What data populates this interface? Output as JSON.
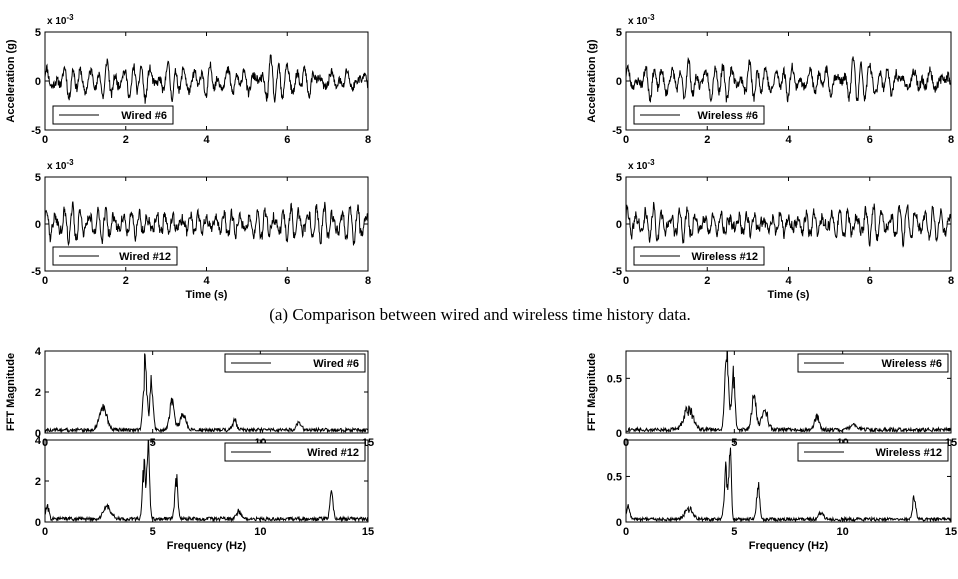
{
  "caption": "(a) Comparison between wired and wireless time history data.",
  "colors": {
    "line": "#000000",
    "axis": "#000000",
    "background": "#ffffff"
  },
  "chart_data": [
    {
      "id": "p1",
      "type": "line",
      "ylabel": "Acceleration (g)",
      "xlabel": "",
      "exponent": "x 10",
      "exponent_power": "-3",
      "xlim": [
        0,
        8
      ],
      "ylim": [
        -5,
        5
      ],
      "xticks": [
        0,
        2,
        4,
        6,
        8
      ],
      "yticks": [
        -5,
        0,
        5
      ],
      "legend": "top-left-lower",
      "series": [
        {
          "name": "Wired #6",
          "kind": "time",
          "seed": 11,
          "amp": 1.0
        }
      ]
    },
    {
      "id": "p2",
      "type": "line",
      "ylabel": "Acceleration (g)",
      "xlabel": "",
      "exponent": "x 10",
      "exponent_power": "-3",
      "xlim": [
        0,
        8
      ],
      "ylim": [
        -5,
        5
      ],
      "xticks": [
        0,
        2,
        4,
        6,
        8
      ],
      "yticks": [
        -5,
        0,
        5
      ],
      "legend": "bottom-left",
      "series": [
        {
          "name": "Wireless #6",
          "kind": "time",
          "seed": 23,
          "amp": 1.0
        }
      ]
    },
    {
      "id": "p3",
      "type": "line",
      "ylabel": "",
      "xlabel": "Time (s)",
      "exponent": "x 10",
      "exponent_power": "-3",
      "xlim": [
        0,
        8
      ],
      "ylim": [
        -5,
        5
      ],
      "xticks": [
        0,
        2,
        4,
        6,
        8
      ],
      "yticks": [
        -5,
        0,
        5
      ],
      "legend": "bottom-left",
      "series": [
        {
          "name": "Wired #12",
          "kind": "time2",
          "seed": 37,
          "amp": 1.0
        }
      ]
    },
    {
      "id": "p4",
      "type": "line",
      "ylabel": "",
      "xlabel": "Time (s)",
      "exponent": "x 10",
      "exponent_power": "-3",
      "xlim": [
        0,
        8
      ],
      "ylim": [
        -5,
        5
      ],
      "xticks": [
        0,
        2,
        4,
        6,
        8
      ],
      "yticks": [
        -5,
        0,
        5
      ],
      "legend": "bottom-left",
      "series": [
        {
          "name": "Wireless #12",
          "kind": "time2",
          "seed": 41,
          "amp": 1.0
        }
      ]
    },
    {
      "id": "p5",
      "type": "line",
      "ylabel": "FFT Magnitude",
      "xlabel": "",
      "exponent": "",
      "exponent_power": "",
      "xlim": [
        0,
        15
      ],
      "ylim": [
        0,
        4
      ],
      "xticks": [
        0,
        5,
        10,
        15
      ],
      "yticks": [
        0,
        2,
        4
      ],
      "legend": "top-right",
      "series": [
        {
          "name": "Wired #6",
          "kind": "fft",
          "peaks": [
            [
              2.7,
              1.1,
              0.25
            ],
            [
              4.65,
              3.2,
              0.12
            ],
            [
              4.95,
              2.6,
              0.1
            ],
            [
              5.9,
              1.4,
              0.15
            ],
            [
              6.4,
              0.8,
              0.2
            ],
            [
              8.8,
              0.5,
              0.15
            ],
            [
              11.8,
              0.4,
              0.15
            ]
          ],
          "floor": 0.15,
          "seed": 5
        }
      ]
    },
    {
      "id": "p6",
      "type": "line",
      "ylabel": "FFT Magnitude",
      "xlabel": "",
      "exponent": "",
      "exponent_power": "",
      "xlim": [
        0,
        15
      ],
      "ylim": [
        0,
        0.75
      ],
      "xticks": [
        0,
        5,
        10,
        15
      ],
      "yticks": [
        0,
        0.5
      ],
      "legend": "top-right",
      "series": [
        {
          "name": "Wireless #6",
          "kind": "fft",
          "peaks": [
            [
              2.9,
              0.2,
              0.3
            ],
            [
              4.65,
              0.72,
              0.12
            ],
            [
              4.95,
              0.55,
              0.1
            ],
            [
              5.9,
              0.3,
              0.15
            ],
            [
              6.4,
              0.18,
              0.2
            ],
            [
              8.8,
              0.13,
              0.15
            ],
            [
              10.5,
              0.06,
              0.2
            ]
          ],
          "floor": 0.03,
          "seed": 9
        }
      ]
    },
    {
      "id": "p7",
      "type": "line",
      "ylabel": "",
      "xlabel": "Frequency (Hz)",
      "exponent": "",
      "exponent_power": "",
      "xlim": [
        0,
        15
      ],
      "ylim": [
        0,
        4
      ],
      "xticks": [
        0,
        5,
        10,
        15
      ],
      "yticks": [
        0,
        2,
        4
      ],
      "legend": "top-right",
      "series": [
        {
          "name": "Wired #12",
          "kind": "fft",
          "peaks": [
            [
              0.1,
              0.7,
              0.1
            ],
            [
              2.9,
              0.6,
              0.25
            ],
            [
              4.6,
              2.6,
              0.1
            ],
            [
              4.8,
              3.8,
              0.08
            ],
            [
              6.1,
              2.0,
              0.1
            ],
            [
              9.0,
              0.4,
              0.15
            ],
            [
              13.3,
              1.3,
              0.1
            ]
          ],
          "floor": 0.15,
          "seed": 13
        }
      ]
    },
    {
      "id": "p8",
      "type": "line",
      "ylabel": "",
      "xlabel": "Frequency (Hz)",
      "exponent": "",
      "exponent_power": "",
      "xlim": [
        0,
        15
      ],
      "ylim": [
        0,
        0.9
      ],
      "xticks": [
        0,
        5,
        10,
        15
      ],
      "yticks": [
        0,
        0.5
      ],
      "legend": "top-right",
      "series": [
        {
          "name": "Wireless #12",
          "kind": "fft",
          "peaks": [
            [
              0.1,
              0.15,
              0.1
            ],
            [
              2.9,
              0.12,
              0.25
            ],
            [
              4.6,
              0.55,
              0.1
            ],
            [
              4.8,
              0.78,
              0.08
            ],
            [
              6.1,
              0.38,
              0.1
            ],
            [
              9.0,
              0.08,
              0.15
            ],
            [
              13.3,
              0.25,
              0.1
            ]
          ],
          "floor": 0.03,
          "seed": 17
        }
      ]
    }
  ]
}
